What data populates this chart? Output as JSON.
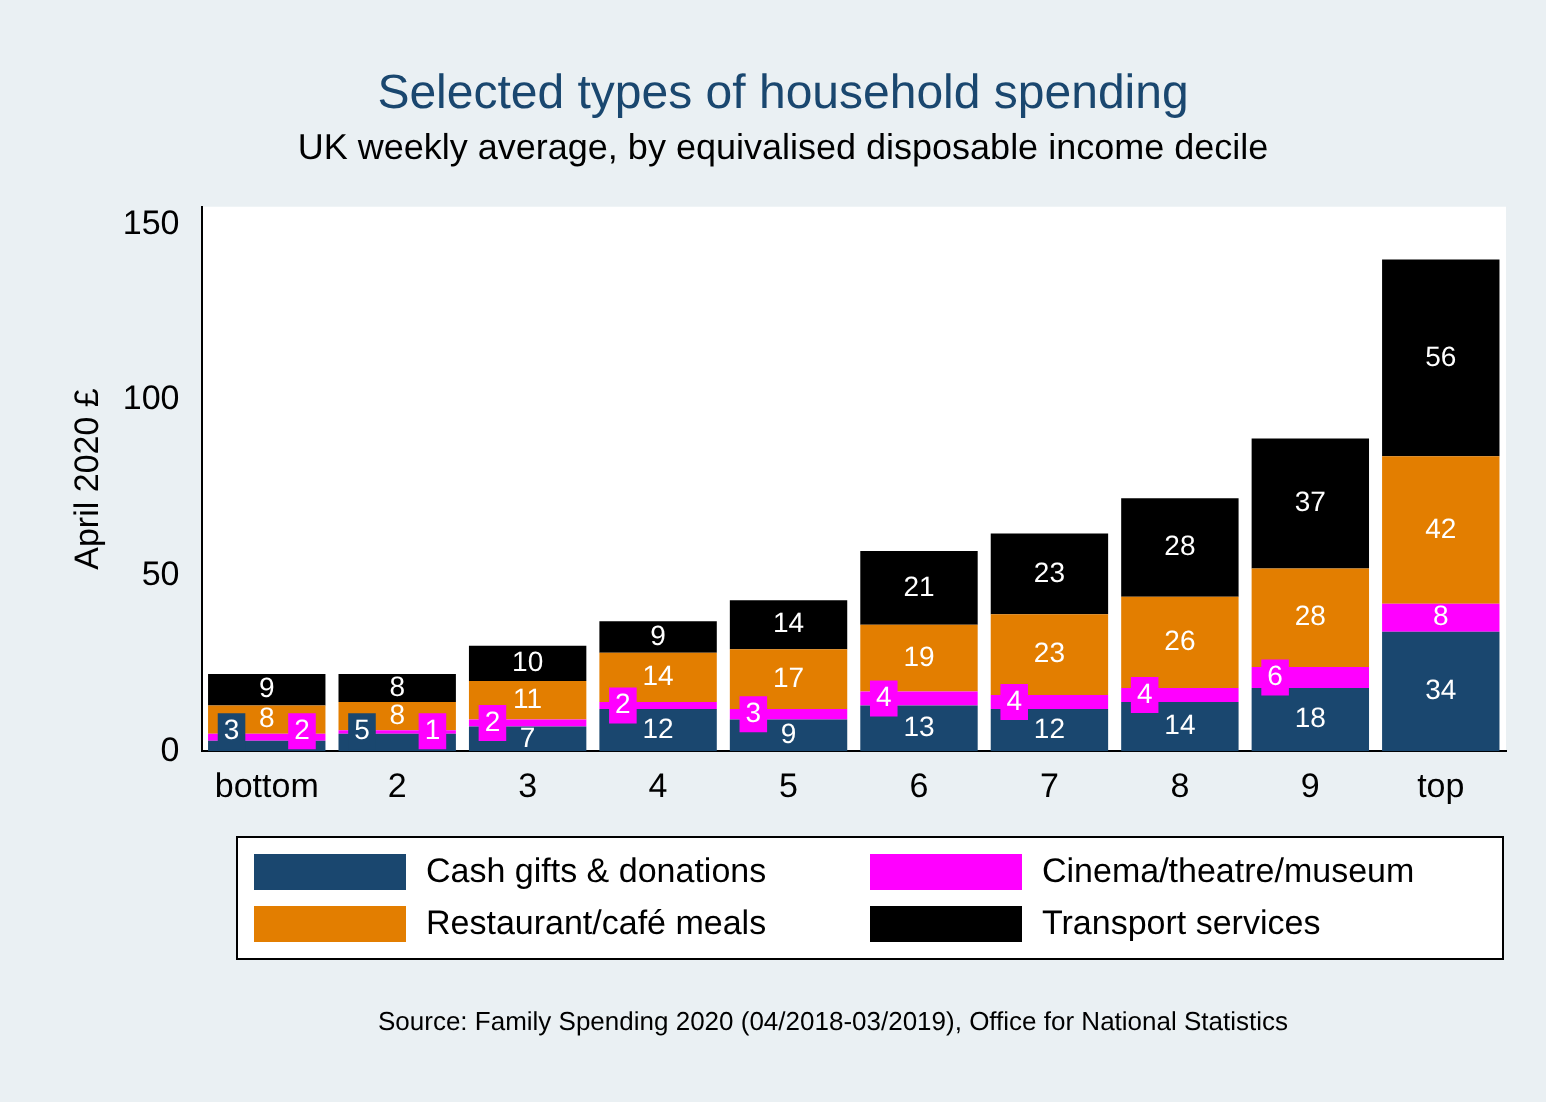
{
  "chart_data": {
    "type": "bar",
    "title": "Selected types of household spending",
    "subtitle": "UK weekly average, by equivalised disposable income decile",
    "ylabel": "April 2020 £",
    "categories": [
      "bottom",
      "2",
      "3",
      "4",
      "5",
      "6",
      "7",
      "8",
      "9",
      "top"
    ],
    "stacked": true,
    "data_labels": true,
    "grid": false,
    "legend": "bottom",
    "ylim": [
      0,
      155
    ],
    "yticks": [
      0,
      50,
      100,
      150
    ],
    "series": [
      {
        "name": "Cash gifts & donations",
        "color": "#1a476f",
        "values": [
          3,
          5,
          7,
          12,
          9,
          13,
          12,
          14,
          18,
          34
        ]
      },
      {
        "name": "Cinema/theatre/museum",
        "color": "#ff00ff",
        "values": [
          2,
          1,
          2,
          2,
          3,
          4,
          4,
          4,
          6,
          8
        ]
      },
      {
        "name": "Restaurant/café meals",
        "color": "#e37e00",
        "values": [
          8,
          8,
          11,
          14,
          17,
          19,
          23,
          26,
          28,
          42
        ]
      },
      {
        "name": "Transport services",
        "color": "#000000",
        "values": [
          9,
          8,
          10,
          9,
          14,
          21,
          23,
          28,
          37,
          56
        ]
      }
    ],
    "annotations": [
      "Source: Family Spending 2020 (04/2018-03/2019), Office for National Statistics"
    ]
  }
}
